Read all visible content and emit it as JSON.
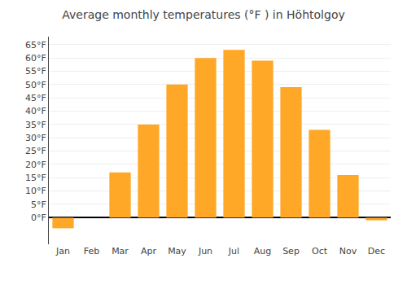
{
  "chart_data": {
    "type": "bar",
    "title": "Average monthly temperatures (°F ) in Höhtolgoy",
    "categories": [
      "Jan",
      "Feb",
      "Mar",
      "Apr",
      "May",
      "Jun",
      "Jul",
      "Aug",
      "Sep",
      "Oct",
      "Nov",
      "Dec"
    ],
    "values": [
      -4,
      0,
      17,
      35,
      50,
      60,
      63,
      59,
      49,
      33,
      16,
      -1
    ],
    "color": "#FFA726",
    "ylim": [
      -10,
      68
    ],
    "yticks": [
      {
        "value": 0,
        "label": "0°F"
      },
      {
        "value": 5,
        "label": "5°F"
      },
      {
        "value": 10,
        "label": "10°F"
      },
      {
        "value": 15,
        "label": "15°F"
      },
      {
        "value": 20,
        "label": "20°F"
      },
      {
        "value": 25,
        "label": "25°F"
      },
      {
        "value": 30,
        "label": "30°F"
      },
      {
        "value": 35,
        "label": "35°F"
      },
      {
        "value": 40,
        "label": "40°F"
      },
      {
        "value": 45,
        "label": "45°F"
      },
      {
        "value": 50,
        "label": "50°F"
      },
      {
        "value": 55,
        "label": "55°F"
      },
      {
        "value": 60,
        "label": "60°F"
      },
      {
        "value": 65,
        "label": "65°F"
      }
    ],
    "grid": true
  }
}
